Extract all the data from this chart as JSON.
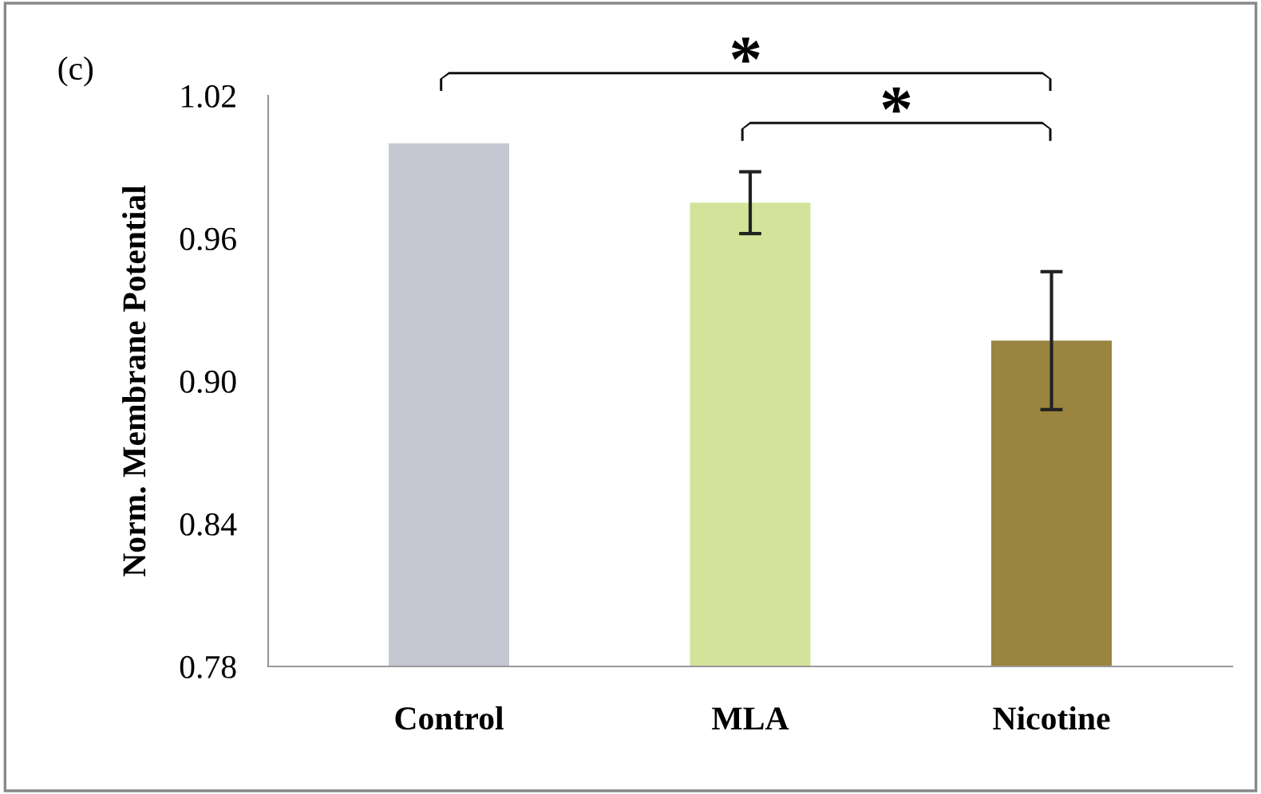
{
  "chart_data": {
    "type": "bar",
    "ylabel": "Norm. Membrane Potential",
    "categories": [
      "Control",
      "MLA",
      "Nicotine"
    ],
    "values": [
      1.0,
      0.975,
      0.917
    ],
    "errors": [
      null,
      0.013,
      0.029
    ],
    "colors": [
      "#c5c8d3",
      "#d3e39a",
      "#9a8540"
    ],
    "ylim": [
      0.78,
      1.02
    ],
    "yticks": [
      0.78,
      0.84,
      {
        "value": 0.9,
        "label": "0.90"
      },
      0.96,
      1.02
    ],
    "grid": false,
    "legend": false,
    "annotations": [
      "(c)",
      "*",
      "*"
    ]
  }
}
